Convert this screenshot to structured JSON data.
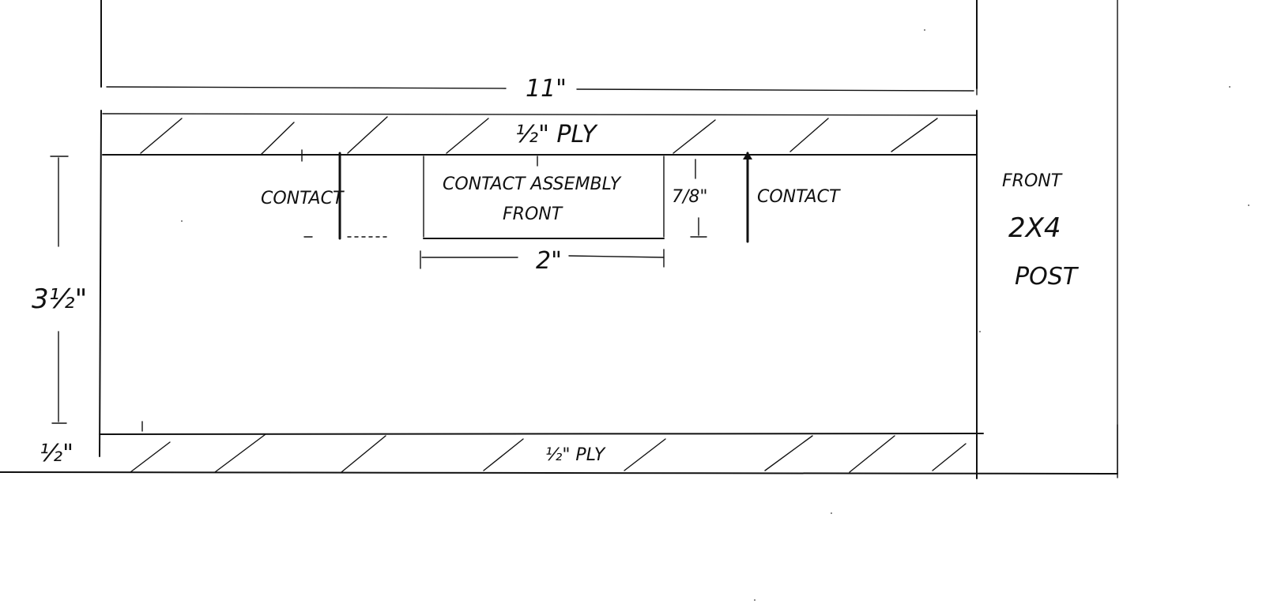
{
  "labels": {
    "overall_width": "11\"",
    "top_ply": "½\" PLY",
    "bottom_ply": "½\" PLY",
    "post_height": "3½\"",
    "bottom_thickness": "½\"",
    "contact_left": "CONTACT",
    "contact_right": "CONTACT",
    "assembly_line1": "CONTACT ASSEMBLY",
    "assembly_line2": "FRONT",
    "assembly_depth": "7/8\"",
    "assembly_width": "2\"",
    "post_line1": "FRONT",
    "post_line2": "2X4",
    "post_line3": "POST"
  },
  "colors": {
    "ink": "#111111",
    "paper": "#ffffff"
  }
}
